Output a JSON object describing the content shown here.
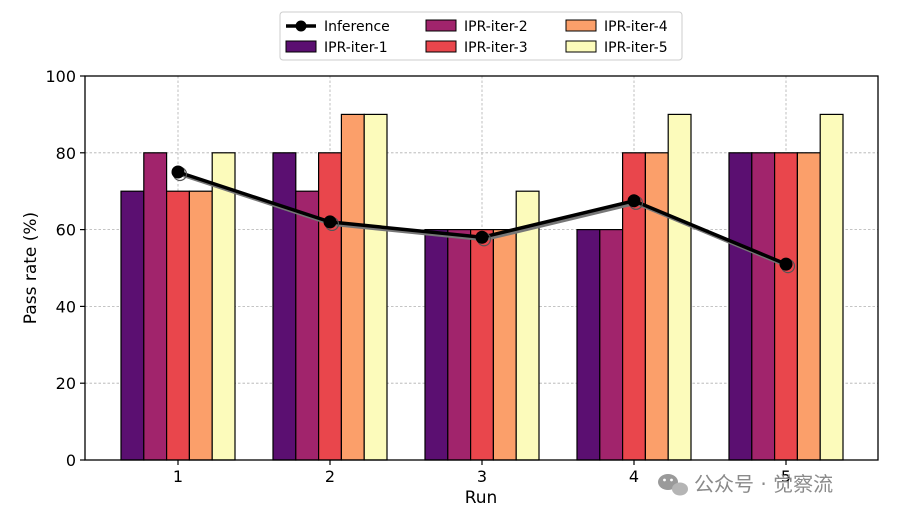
{
  "chart_data": {
    "type": "bar",
    "categories": [
      "1",
      "2",
      "3",
      "4",
      "5"
    ],
    "xlabel": "Run",
    "ylabel": "Pass rate (%)",
    "ylim": [
      0,
      100
    ],
    "yticks": [
      0,
      20,
      40,
      60,
      80,
      100
    ],
    "grid": true,
    "legend_position": "top-center",
    "series": [
      {
        "name": "IPR-iter-1",
        "color": "#5b0f71",
        "values": [
          70,
          80,
          60,
          60,
          80
        ]
      },
      {
        "name": "IPR-iter-2",
        "color": "#a1246c",
        "values": [
          80,
          70,
          60,
          60,
          80
        ]
      },
      {
        "name": "IPR-iter-3",
        "color": "#e9464c",
        "values": [
          70,
          80,
          60,
          80,
          80
        ]
      },
      {
        "name": "IPR-iter-4",
        "color": "#fb9f6a",
        "values": [
          70,
          90,
          60,
          80,
          80
        ]
      },
      {
        "name": "IPR-iter-5",
        "color": "#fcfbbb",
        "values": [
          80,
          90,
          70,
          90,
          90
        ]
      }
    ],
    "line": {
      "name": "Inference",
      "color": "#000000",
      "values": [
        75,
        62,
        58,
        67.5,
        51
      ]
    },
    "legend_order": [
      "Inference",
      "IPR-iter-1",
      "IPR-iter-2",
      "IPR-iter-3",
      "IPR-iter-4",
      "IPR-iter-5"
    ]
  },
  "watermark": {
    "text": "公众号 · 觉察流",
    "icon": "wechat-icon"
  }
}
